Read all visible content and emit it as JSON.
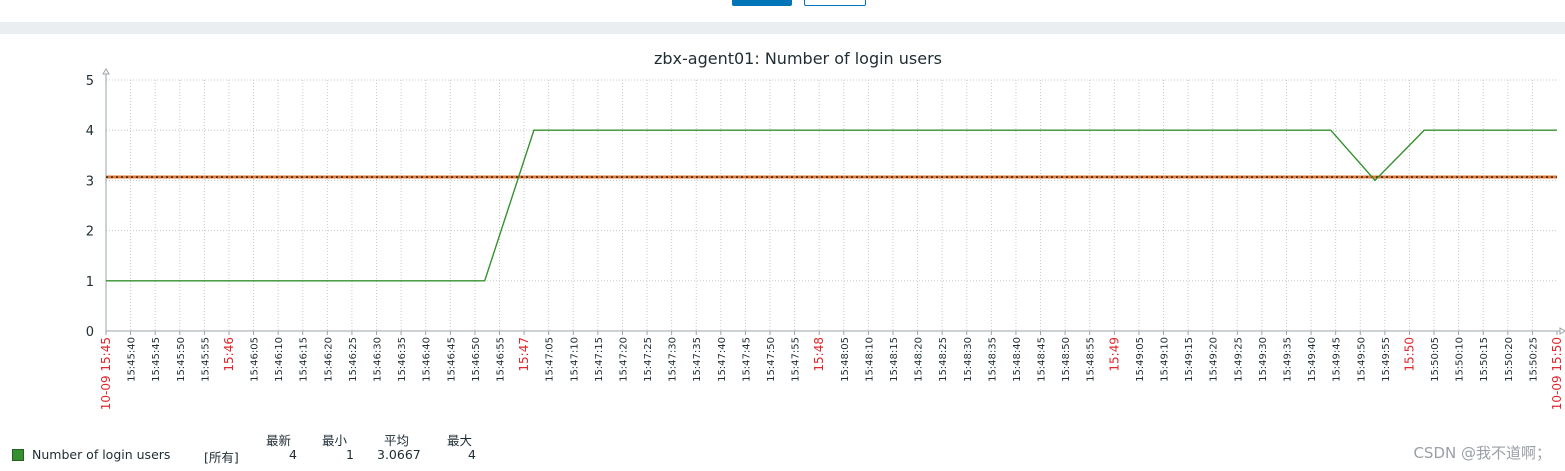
{
  "chart_data": {
    "type": "line",
    "title": "zbx-agent01: Number of login users",
    "ylim": [
      0,
      5
    ],
    "yticks": [
      "0",
      "1",
      "2",
      "3",
      "4",
      "5"
    ],
    "x_range": [
      "15:45:35",
      "15:50:30"
    ],
    "x_tick_labels": [
      {
        "t": "15:45:35",
        "label": "10-09 15:45",
        "emph": true
      },
      {
        "t": "15:45:40",
        "label": "15:45:40"
      },
      {
        "t": "15:45:45",
        "label": "15:45:45"
      },
      {
        "t": "15:45:50",
        "label": "15:45:50"
      },
      {
        "t": "15:45:55",
        "label": "15:45:55"
      },
      {
        "t": "15:46:00",
        "label": "15:46",
        "emph": true
      },
      {
        "t": "15:46:05",
        "label": "15:46:05"
      },
      {
        "t": "15:46:10",
        "label": "15:46:10"
      },
      {
        "t": "15:46:15",
        "label": "15:46:15"
      },
      {
        "t": "15:46:20",
        "label": "15:46:20"
      },
      {
        "t": "15:46:25",
        "label": "15:46:25"
      },
      {
        "t": "15:46:30",
        "label": "15:46:30"
      },
      {
        "t": "15:46:35",
        "label": "15:46:35"
      },
      {
        "t": "15:46:40",
        "label": "15:46:40"
      },
      {
        "t": "15:46:45",
        "label": "15:46:45"
      },
      {
        "t": "15:46:50",
        "label": "15:46:50"
      },
      {
        "t": "15:46:55",
        "label": "15:46:55"
      },
      {
        "t": "15:47:00",
        "label": "15:47",
        "emph": true
      },
      {
        "t": "15:47:05",
        "label": "15:47:05"
      },
      {
        "t": "15:47:10",
        "label": "15:47:10"
      },
      {
        "t": "15:47:15",
        "label": "15:47:15"
      },
      {
        "t": "15:47:20",
        "label": "15:47:20"
      },
      {
        "t": "15:47:25",
        "label": "15:47:25"
      },
      {
        "t": "15:47:30",
        "label": "15:47:30"
      },
      {
        "t": "15:47:35",
        "label": "15:47:35"
      },
      {
        "t": "15:47:40",
        "label": "15:47:40"
      },
      {
        "t": "15:47:45",
        "label": "15:47:45"
      },
      {
        "t": "15:47:50",
        "label": "15:47:50"
      },
      {
        "t": "15:47:55",
        "label": "15:47:55"
      },
      {
        "t": "15:48:00",
        "label": "15:48",
        "emph": true
      },
      {
        "t": "15:48:05",
        "label": "15:48:05"
      },
      {
        "t": "15:48:10",
        "label": "15:48:10"
      },
      {
        "t": "15:48:15",
        "label": "15:48:15"
      },
      {
        "t": "15:48:20",
        "label": "15:48:20"
      },
      {
        "t": "15:48:25",
        "label": "15:48:25"
      },
      {
        "t": "15:48:30",
        "label": "15:48:30"
      },
      {
        "t": "15:48:35",
        "label": "15:48:35"
      },
      {
        "t": "15:48:40",
        "label": "15:48:40"
      },
      {
        "t": "15:48:45",
        "label": "15:48:45"
      },
      {
        "t": "15:48:50",
        "label": "15:48:50"
      },
      {
        "t": "15:48:55",
        "label": "15:48:55"
      },
      {
        "t": "15:49:00",
        "label": "15:49",
        "emph": true
      },
      {
        "t": "15:49:05",
        "label": "15:49:05"
      },
      {
        "t": "15:49:10",
        "label": "15:49:10"
      },
      {
        "t": "15:49:15",
        "label": "15:49:15"
      },
      {
        "t": "15:49:20",
        "label": "15:49:20"
      },
      {
        "t": "15:49:25",
        "label": "15:49:25"
      },
      {
        "t": "15:49:30",
        "label": "15:49:30"
      },
      {
        "t": "15:49:35",
        "label": "15:49:35"
      },
      {
        "t": "15:49:40",
        "label": "15:49:40"
      },
      {
        "t": "15:49:45",
        "label": "15:49:45"
      },
      {
        "t": "15:49:50",
        "label": "15:49:50"
      },
      {
        "t": "15:49:55",
        "label": "15:49:55"
      },
      {
        "t": "15:50:00",
        "label": "15:50",
        "emph": true
      },
      {
        "t": "15:50:05",
        "label": "15:50:05"
      },
      {
        "t": "15:50:10",
        "label": "15:50:10"
      },
      {
        "t": "15:50:15",
        "label": "15:50:15"
      },
      {
        "t": "15:50:20",
        "label": "15:50:20"
      },
      {
        "t": "15:50:25",
        "label": "15:50:25"
      },
      {
        "t": "15:50:30",
        "label": "10-09 15:50",
        "emph": true
      }
    ],
    "series": [
      {
        "name": "Number of login users",
        "color": "#37902f",
        "points": [
          {
            "t": "15:45:35",
            "y": 1
          },
          {
            "t": "15:46:52",
            "y": 1
          },
          {
            "t": "15:47:02",
            "y": 4
          },
          {
            "t": "15:49:44",
            "y": 4
          },
          {
            "t": "15:49:53",
            "y": 3
          },
          {
            "t": "15:50:03",
            "y": 4
          },
          {
            "t": "15:50:30",
            "y": 4
          }
        ]
      }
    ],
    "reference_line": {
      "y": 3.0667,
      "color": "#e07b39"
    },
    "grid": true,
    "legend_placement": "bottom-left"
  },
  "legend": {
    "headers": {
      "last": "最新",
      "min": "最小",
      "avg": "平均",
      "max": "最大"
    },
    "item": {
      "name": "Number of login users",
      "function": "[所有]",
      "last": "4",
      "min": "1",
      "avg": "3.0667",
      "max": "4"
    }
  },
  "watermark": "CSDN @我不道啊；",
  "colors": {
    "emph": "#e0282e",
    "text": "#1f2c33",
    "grid": "#c6c9cc",
    "axis": "#9aa3a9"
  }
}
